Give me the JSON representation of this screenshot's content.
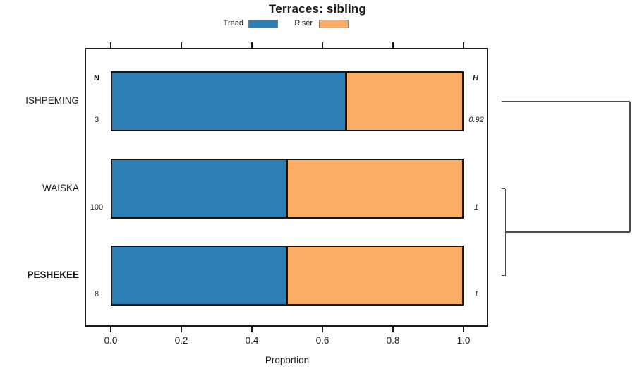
{
  "title": "Terraces: sibling",
  "legend": {
    "items": [
      {
        "label": "Tread",
        "color": "#2E7EB6"
      },
      {
        "label": "Riser",
        "color": "#FBAD66"
      }
    ]
  },
  "chart_data": {
    "type": "bar",
    "orientation": "horizontal",
    "stacked": true,
    "title": "Terraces: sibling",
    "xlabel": "Proportion",
    "xlim": [
      0,
      1
    ],
    "x_ticks": [
      0.0,
      0.2,
      0.4,
      0.6,
      0.8,
      1.0
    ],
    "x_tick_labels": [
      "0.0",
      "0.2",
      "0.4",
      "0.6",
      "0.8",
      "1.0"
    ],
    "grid": false,
    "legend_position": "top",
    "categories": [
      "ISHPEMING",
      "WAISKA",
      "PESHEKEE"
    ],
    "bold_category": "PESHEKEE",
    "series": [
      {
        "name": "Tread",
        "color": "#2E7EB6",
        "values": [
          0.667,
          0.5,
          0.5
        ]
      },
      {
        "name": "Riser",
        "color": "#FBAD66",
        "values": [
          0.333,
          0.5,
          0.5
        ]
      }
    ],
    "annotation_columns": {
      "left_header": "N",
      "right_header": "H",
      "left_values": [
        "3",
        "100",
        "8"
      ],
      "right_values": [
        "0.92",
        "1",
        "1"
      ]
    },
    "dendrogram": {
      "side": "right",
      "leaves": [
        "ISHPEMING",
        "WAISKA",
        "PESHEKEE"
      ],
      "merges": [
        {
          "children": [
            "WAISKA",
            "PESHEKEE"
          ],
          "height": 0.03
        },
        {
          "children": [
            "ISHPEMING",
            "merge0"
          ],
          "height": 1.0
        }
      ]
    }
  }
}
